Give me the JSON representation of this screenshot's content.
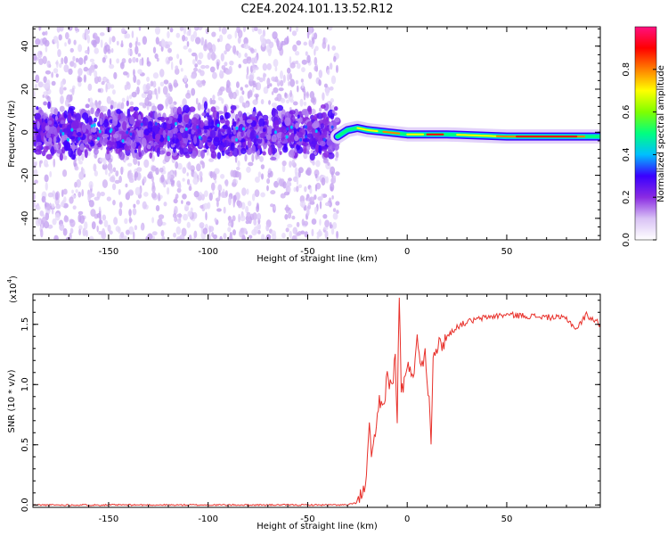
{
  "title": "C2E4.2024.101.13.52.R12",
  "chart_data": [
    {
      "type": "heatmap",
      "name": "spectrogram",
      "xlabel": "Height of straight line (km)",
      "ylabel": "Frequency (Hz)",
      "xlim": [
        -188,
        97
      ],
      "ylim": [
        -50,
        49
      ],
      "x_ticks": [
        -150,
        -100,
        -50,
        0,
        50
      ],
      "y_ticks": [
        -40,
        -20,
        0,
        20,
        40
      ],
      "x_tick_labels": [
        "-150",
        "-100",
        "-50",
        "0",
        "50"
      ],
      "y_tick_labels": [
        "-40",
        "-20",
        "0",
        "20",
        "40"
      ],
      "colorbar": {
        "label": "Normalized spectral amplitude",
        "range": [
          0,
          1
        ],
        "ticks": [
          0.0,
          0.2,
          0.4,
          0.6,
          0.8
        ],
        "tick_labels": [
          "0.0",
          "0.2",
          "0.4",
          "0.6",
          "0.8"
        ],
        "colors": [
          "#ffffff",
          "#d9c2f5",
          "#8a2be2",
          "#3a00ff",
          "#00bfff",
          "#00ff80",
          "#7fff00",
          "#ffff00",
          "#ff8000",
          "#ff0000",
          "#ff1080"
        ]
      },
      "features": {
        "noise_region_x": [
          -188,
          -35
        ],
        "noise_band_center_hz": 0,
        "noise_band_halfwidth_hz": 10,
        "signal_region_x": [
          -35,
          97
        ],
        "signal_track": [
          {
            "x": -35,
            "y": -2
          },
          {
            "x": -30,
            "y": 1
          },
          {
            "x": -25,
            "y": 2
          },
          {
            "x": -20,
            "y": 1
          },
          {
            "x": -10,
            "y": 0
          },
          {
            "x": 0,
            "y": -1
          },
          {
            "x": 20,
            "y": -1
          },
          {
            "x": 50,
            "y": -2
          },
          {
            "x": 97,
            "y": -2
          }
        ]
      }
    },
    {
      "type": "line",
      "name": "snr",
      "xlabel": "Height of straight line (km)",
      "ylabel": "SNR (10 * v/v)",
      "multiplier_label": "(x10",
      "multiplier_exp": "4",
      "color": "#e8302a",
      "xlim": [
        -188,
        97
      ],
      "ylim": [
        -0.02,
        1.75
      ],
      "x_ticks": [
        -150,
        -100,
        -50,
        0,
        50
      ],
      "y_ticks": [
        0.0,
        0.5,
        1.0,
        1.5
      ],
      "x_tick_labels": [
        "-150",
        "-100",
        "-50",
        "0",
        "50"
      ],
      "y_tick_labels": [
        "0.0",
        "0.5",
        "1.0",
        "1.5"
      ],
      "points": [
        [
          -188,
          0.0
        ],
        [
          -150,
          0.0
        ],
        [
          -100,
          0.0
        ],
        [
          -50,
          0.0
        ],
        [
          -30,
          0.0
        ],
        [
          -25,
          0.02
        ],
        [
          -22,
          0.1
        ],
        [
          -20,
          0.35
        ],
        [
          -19,
          0.62
        ],
        [
          -18,
          0.45
        ],
        [
          -16,
          0.52
        ],
        [
          -14,
          0.85
        ],
        [
          -12,
          0.8
        ],
        [
          -10,
          1.1
        ],
        [
          -8,
          0.95
        ],
        [
          -6,
          1.22
        ],
        [
          -5,
          0.7
        ],
        [
          -4,
          1.75
        ],
        [
          -3,
          0.95
        ],
        [
          -1,
          1.05
        ],
        [
          1,
          1.15
        ],
        [
          3,
          1.1
        ],
        [
          5,
          1.35
        ],
        [
          7,
          1.2
        ],
        [
          9,
          1.25
        ],
        [
          11,
          0.9
        ],
        [
          12,
          0.5
        ],
        [
          13,
          1.3
        ],
        [
          15,
          1.3
        ],
        [
          18,
          1.35
        ],
        [
          20,
          1.4
        ],
        [
          25,
          1.48
        ],
        [
          30,
          1.52
        ],
        [
          40,
          1.56
        ],
        [
          50,
          1.58
        ],
        [
          60,
          1.57
        ],
        [
          70,
          1.56
        ],
        [
          80,
          1.55
        ],
        [
          85,
          1.46
        ],
        [
          90,
          1.58
        ],
        [
          97,
          1.5
        ]
      ]
    }
  ]
}
